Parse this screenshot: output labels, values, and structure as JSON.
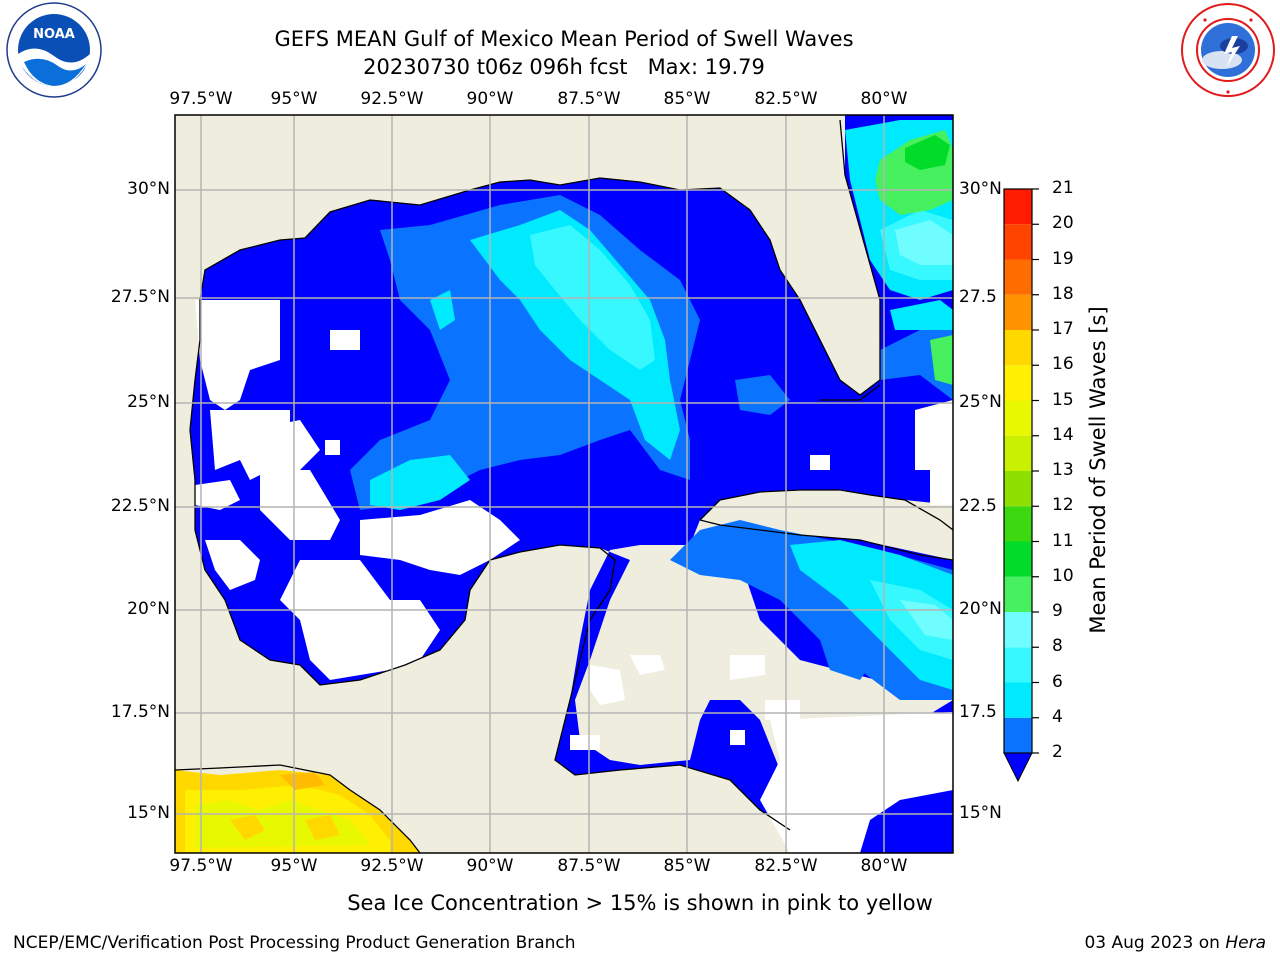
{
  "title": {
    "line1": "GEFS MEAN Gulf of Mexico Mean Period of Swell Waves",
    "line2": "20230730 t06z 096h fcst   Max: 19.79"
  },
  "logos": {
    "noaa_text": "NOAA",
    "noaa_ring": "NATIONAL OCEANIC AND ATMOSPHERIC ADMINISTRATION · U.S. DEPARTMENT OF COMMERCE",
    "nws_ring": "NATIONAL WEATHER SERVICE"
  },
  "map": {
    "lon_labels": [
      "97.5°W",
      "95°W",
      "92.5°W",
      "90°W",
      "87.5°W",
      "85°W",
      "82.5°W",
      "80°W"
    ],
    "lat_labels_left": [
      "30°N",
      "27.5°N",
      "25°N",
      "22.5°N",
      "20°N",
      "17.5°N",
      "15°N"
    ],
    "lat_labels_right": [
      "30°N",
      "27.5",
      "25°N",
      "22.5",
      "20°N",
      "17.5",
      "15°N"
    ]
  },
  "colorbar": {
    "label": "Mean Period of Swell Waves [s]",
    "ticks": [
      "2",
      "4",
      "6",
      "8",
      "9",
      "10",
      "11",
      "12",
      "13",
      "14",
      "15",
      "16",
      "17",
      "18",
      "19",
      "20",
      "21"
    ],
    "colors": [
      "#0a73ff",
      "#00eaff",
      "#38f8ff",
      "#70fdff",
      "#a8ffff",
      "#46f05e",
      "#00dc28",
      "#3cd810",
      "#8ee000",
      "#c8f000",
      "#e8f800",
      "#ffef00",
      "#ffd800",
      "#ffbc00",
      "#ff9400",
      "#ff6c00",
      "#ff4400",
      "#ff1c00"
    ],
    "under_color": "#0000ff"
  },
  "colors": {
    "land": "#efedde",
    "no_data": "#ffffff",
    "grid": "#b4b4b4"
  },
  "notes": {
    "ice": "Sea Ice Concentration > 15% is shown in pink to yellow"
  },
  "footer": {
    "left": "NCEP/EMC/Verification Post Processing Product Generation Branch",
    "date": "03 Aug 2023 on ",
    "machine": "Hera"
  }
}
